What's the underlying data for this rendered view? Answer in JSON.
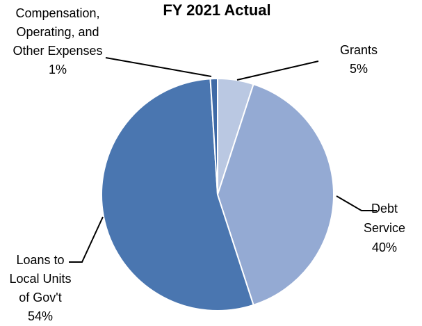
{
  "chart_data": {
    "type": "pie",
    "title": "FY 2021 Actual",
    "slices": [
      {
        "label_lines": [
          "Grants",
          "5%"
        ],
        "value": 5,
        "color": "#bac8e2"
      },
      {
        "label_lines": [
          "Debt",
          "Service",
          "40%"
        ],
        "value": 40,
        "color": "#94aad3"
      },
      {
        "label_lines": [
          "Loans to",
          "Local Units",
          "of Gov't",
          "54%"
        ],
        "value": 54,
        "color": "#4a76b0"
      },
      {
        "label_lines": [
          "Compensation,",
          "Operating, and",
          "Other Expenses",
          "1%"
        ],
        "value": 1,
        "color": "#3f6aa6"
      }
    ],
    "start_at": "12 o'clock",
    "direction": "clockwise",
    "legend": "none",
    "data_labels": "outside with leader lines"
  }
}
